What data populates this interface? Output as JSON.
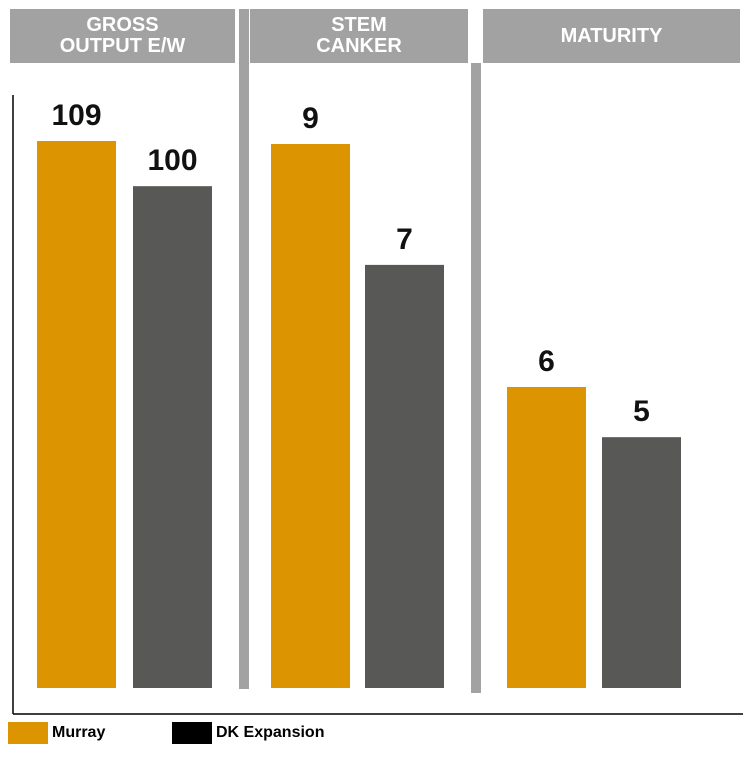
{
  "chart_data": {
    "type": "bar",
    "panels": [
      {
        "header_lines": [
          "GROSS",
          "OUTPUT E/W"
        ],
        "values": [
          109,
          100
        ]
      },
      {
        "header_lines": [
          "STEM",
          "CANKER"
        ],
        "values": [
          9,
          7
        ]
      },
      {
        "header_lines": [
          "MATURITY"
        ],
        "values": [
          6,
          5
        ]
      }
    ],
    "series": [
      {
        "name": "Murray",
        "color": "#dc9500"
      },
      {
        "name": "DK Expansion",
        "color": "#585856",
        "legend_color": "#000000"
      }
    ],
    "grid": false,
    "legend_position": "bottom-left"
  }
}
